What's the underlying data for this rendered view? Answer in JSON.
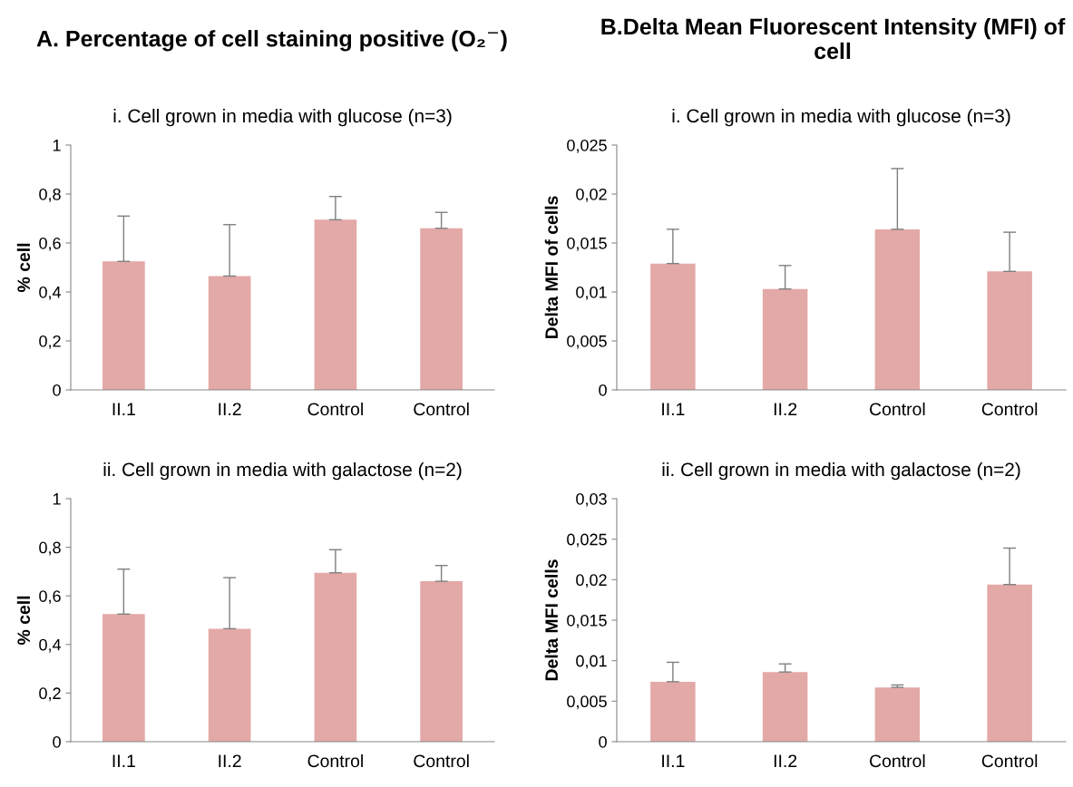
{
  "chart_data": [
    {
      "type": "bar",
      "annotations": [
        "A. Percentage of cell staining positive (O₂$^{−}$)"
      ],
      "title": "i. Cell grown in media with glucose (n=3)",
      "ylabel": "% cell",
      "categories": [
        "II.1",
        "II.2",
        "Control",
        "Control"
      ],
      "color": "#e3a9a7",
      "values": [
        0.525,
        0.465,
        0.695,
        0.66
      ],
      "errors": [
        [
          0.525,
          0.71
        ],
        [
          0.465,
          0.675
        ],
        [
          0.695,
          0.79
        ],
        [
          0.66,
          0.725
        ]
      ],
      "ylim": [
        0,
        1
      ],
      "yticks": [
        0,
        {
          "value": 0.2,
          "label": "0,2"
        },
        {
          "value": 0.4,
          "label": "0,4"
        },
        {
          "value": 0.6,
          "label": "0,6"
        },
        {
          "value": 0.8,
          "label": "0,8"
        },
        1
      ],
      "grid": false
    },
    {
      "type": "bar",
      "title": "ii. Cell grown in media with galactose (n=2)",
      "ylabel": "% cell",
      "categories": [
        "II.1",
        "II.2",
        "Control",
        "Control"
      ],
      "color": "#e3a9a7",
      "values": [
        0.525,
        0.465,
        0.695,
        0.66
      ],
      "errors": [
        [
          0.525,
          0.71
        ],
        [
          0.465,
          0.675
        ],
        [
          0.695,
          0.79
        ],
        [
          0.66,
          0.725
        ]
      ],
      "ylim": [
        0,
        1
      ],
      "yticks": [
        0,
        {
          "value": 0.2,
          "label": "0,2"
        },
        {
          "value": 0.4,
          "label": "0,4"
        },
        {
          "value": 0.6,
          "label": "0,6"
        },
        {
          "value": 0.8,
          "label": "0,8"
        },
        1
      ],
      "grid": false
    },
    {
      "type": "bar",
      "annotations": [
        "B.Delta Mean Fluorescent Intensity (MFI) of cell"
      ],
      "title": "i. Cell grown in media with glucose (n=3)",
      "ylabel": "Delta MFI of cells",
      "categories": [
        "II.1",
        "II.2",
        "Control",
        "Control"
      ],
      "color": "#e3a9a7",
      "values": [
        0.0129,
        0.0103,
        0.0164,
        0.0121
      ],
      "errors": [
        [
          0.0129,
          0.0164
        ],
        [
          0.0103,
          0.0127
        ],
        [
          0.0164,
          0.0226
        ],
        [
          0.0121,
          0.0161
        ]
      ],
      "ylim": [
        0,
        0.025
      ],
      "yticks": [
        0,
        {
          "value": 0.005,
          "label": "0,005"
        },
        {
          "value": 0.01,
          "label": "0,01"
        },
        {
          "value": 0.015,
          "label": "0,015"
        },
        {
          "value": 0.02,
          "label": "0,02"
        },
        {
          "value": 0.025,
          "label": "0,025"
        }
      ],
      "grid": false
    },
    {
      "type": "bar",
      "title": "ii. Cell grown in media with galactose (n=2)",
      "ylabel": "Delta MFI cells",
      "categories": [
        "II.1",
        "II.2",
        "Control",
        "Control"
      ],
      "color": "#e3a9a7",
      "values": [
        0.0074,
        0.0086,
        0.0067,
        0.0194
      ],
      "errors": [
        [
          0.0074,
          0.0098
        ],
        [
          0.0086,
          0.0096
        ],
        [
          0.0067,
          0.007
        ],
        [
          0.0194,
          0.0239
        ]
      ],
      "ylim": [
        0,
        0.03
      ],
      "yticks": [
        0,
        {
          "value": 0.005,
          "label": "0,005"
        },
        {
          "value": 0.01,
          "label": "0,01"
        },
        {
          "value": 0.015,
          "label": "0,015"
        },
        {
          "value": 0.02,
          "label": "0,02"
        },
        {
          "value": 0.025,
          "label": "0,025"
        },
        {
          "value": 0.03,
          "label": "0,03"
        }
      ],
      "grid": false
    }
  ]
}
